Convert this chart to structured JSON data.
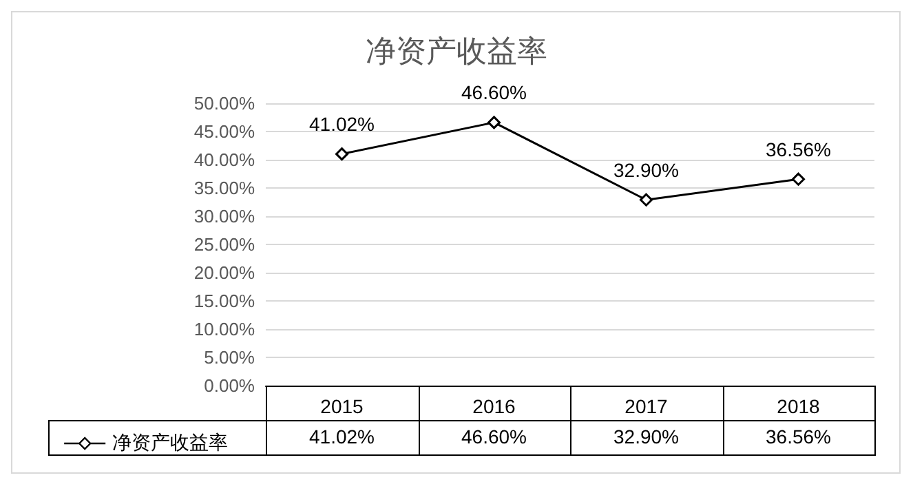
{
  "chart_data": {
    "type": "line",
    "title": "净资产收益率",
    "categories": [
      "2015",
      "2016",
      "2017",
      "2018"
    ],
    "series": [
      {
        "name": "净资产收益率",
        "color": "#000000",
        "values": [
          41.02,
          46.6,
          32.9,
          36.56
        ]
      }
    ],
    "ylim": [
      0,
      50
    ],
    "yticks": [
      {
        "value": 0,
        "label": "0.00%"
      },
      {
        "value": 5,
        "label": "5.00%"
      },
      {
        "value": 10,
        "label": "10.00%"
      },
      {
        "value": 15,
        "label": "15.00%"
      },
      {
        "value": 20,
        "label": "20.00%"
      },
      {
        "value": 25,
        "label": "25.00%"
      },
      {
        "value": 30,
        "label": "30.00%"
      },
      {
        "value": 35,
        "label": "35.00%"
      },
      {
        "value": 40,
        "label": "40.00%"
      },
      {
        "value": 45,
        "label": "45.00%"
      },
      {
        "value": 50,
        "label": "50.00%"
      }
    ],
    "value_labels": [
      "41.02%",
      "46.60%",
      "32.90%",
      "36.56%"
    ],
    "grid": "y",
    "legend": "bottom left",
    "marker": "diamond",
    "line_style": "solid"
  }
}
